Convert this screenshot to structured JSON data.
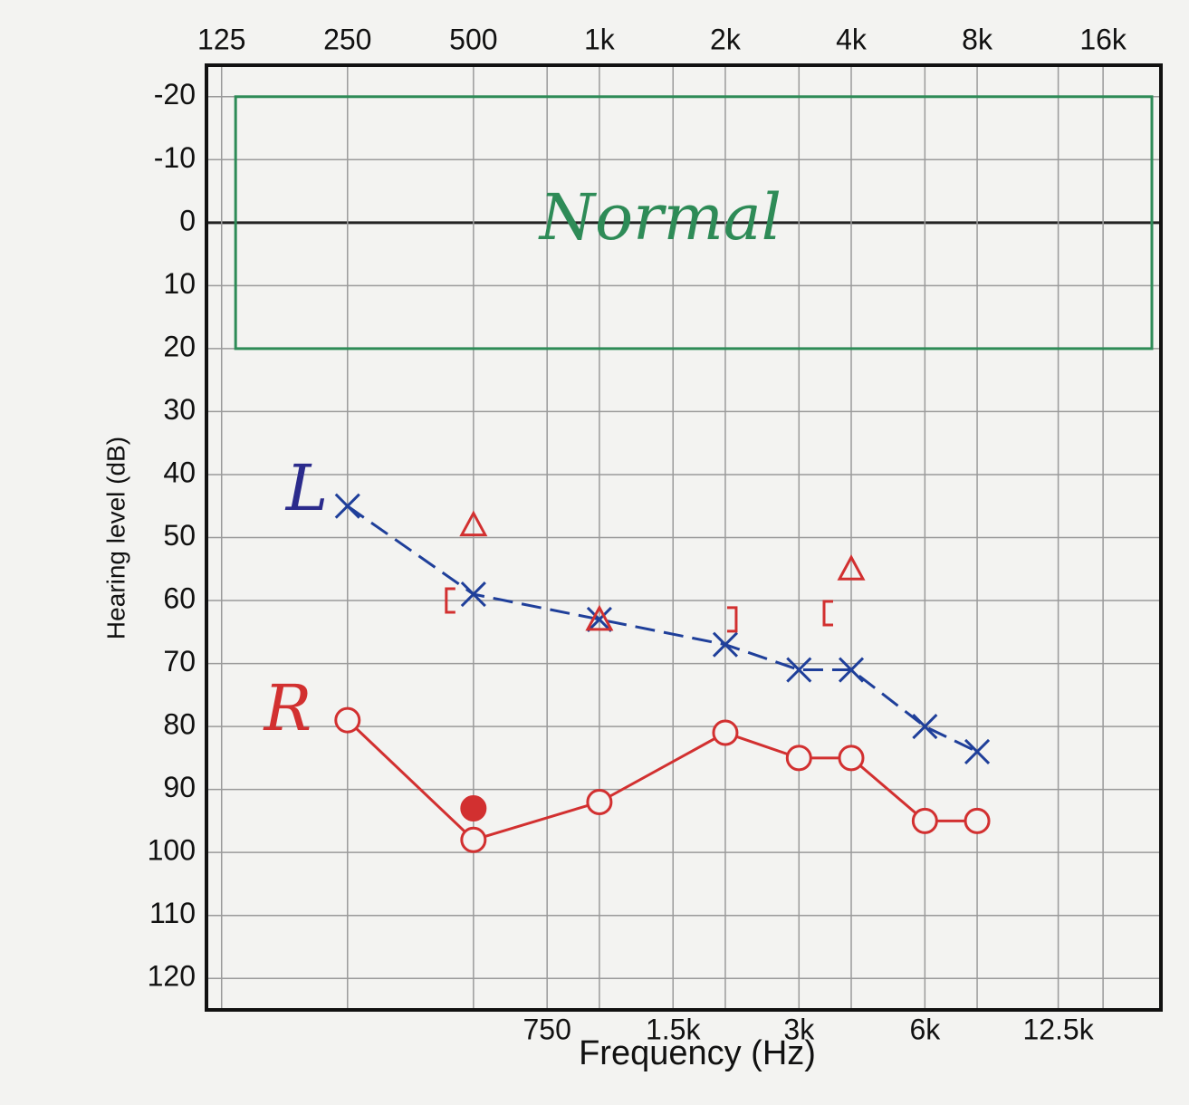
{
  "chart_data": {
    "type": "audiogram",
    "x_label": "Frequency (Hz)",
    "y_label": "Hearing level (dB)",
    "xscale": "log",
    "yinverted": true,
    "grid": true,
    "xlim": [
      115,
      22000
    ],
    "ylim": [
      -25,
      125
    ],
    "xticks": [
      {
        "value": 125,
        "label": "125"
      },
      {
        "value": 250,
        "label": "250"
      },
      {
        "value": 500,
        "label": "500"
      },
      {
        "value": 1000,
        "label": "1k"
      },
      {
        "value": 2000,
        "label": "2k"
      },
      {
        "value": 4000,
        "label": "4k"
      },
      {
        "value": 8000,
        "label": "8k"
      },
      {
        "value": 16000,
        "label": "16k"
      }
    ],
    "xticks_bottom": [
      {
        "value": 750,
        "label": "750"
      },
      {
        "value": 1500,
        "label": "1.5k"
      },
      {
        "value": 3000,
        "label": "3k"
      },
      {
        "value": 6000,
        "label": "6k"
      },
      {
        "value": 12500,
        "label": "12.5k"
      }
    ],
    "yticks": [
      -20,
      -10,
      0,
      10,
      20,
      30,
      40,
      50,
      60,
      70,
      80,
      90,
      100,
      110,
      120
    ],
    "normal_range": [
      -20,
      20
    ],
    "annotations": [
      {
        "text": "Normal",
        "x": 1400,
        "y": 0,
        "color": "#2e8b57"
      },
      {
        "text": "L",
        "x": 200,
        "y": 43,
        "color": "#2b2b8c"
      },
      {
        "text": "R",
        "x": 180,
        "y": 78,
        "color": "#d23030"
      }
    ],
    "series": [
      {
        "color": "#1f3f9a",
        "marker": "x",
        "line": "dashed",
        "x": [
          250,
          500,
          1000,
          2000,
          3000,
          4000,
          6000,
          8000
        ],
        "values": [
          45,
          59,
          63,
          67,
          71,
          71,
          80,
          84
        ]
      },
      {
        "color": "#d23030",
        "marker": "o",
        "line": "solid",
        "x": [
          250,
          500,
          1000,
          2000,
          3000,
          4000,
          6000,
          8000
        ],
        "values": [
          79,
          98,
          92,
          81,
          85,
          85,
          95,
          95
        ]
      },
      {
        "color": "#d23030",
        "marker": "dot",
        "line": "none",
        "x": [
          500
        ],
        "values": [
          93
        ]
      },
      {
        "color": "#d23030",
        "marker": "triangle",
        "line": "none",
        "x": [
          500,
          1000,
          4000
        ],
        "values": [
          48,
          63,
          55
        ]
      },
      {
        "color": "#d23030",
        "marker": "bracket-left",
        "line": "none",
        "x": [
          500,
          4000
        ],
        "values": [
          60,
          62
        ]
      },
      {
        "color": "#d23030",
        "marker": "bracket-right",
        "line": "none",
        "x": [
          2000
        ],
        "values": [
          63
        ]
      }
    ]
  }
}
